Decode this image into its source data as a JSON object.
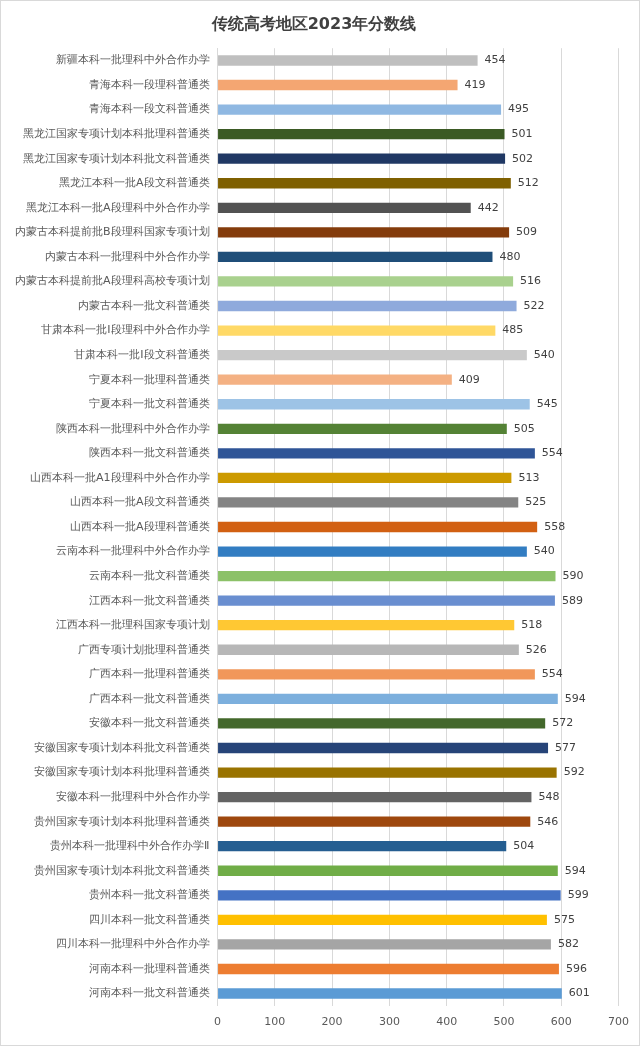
{
  "chart_data": {
    "type": "bar",
    "orientation": "horizontal",
    "title": "传统高考地区2023年分数线",
    "categories": [
      "新疆本科一批理科中外合作办学",
      "青海本科一段理科普通类",
      "青海本科一段文科普通类",
      "黑龙江国家专项计划本科批理科普通类",
      "黑龙江国家专项计划本科批文科普通类",
      "黑龙江本科一批A段文科普通类",
      "黑龙江本科一批A段理科中外合作办学",
      "内蒙古本科提前批B段理科国家专项计划",
      "内蒙古本科一批理科中外合作办学",
      "内蒙古本科提前批A段理科高校专项计划",
      "内蒙古本科一批文科普通类",
      "甘肃本科一批I段理科中外合作办学",
      "甘肃本科一批I段文科普通类",
      "宁夏本科一批理科普通类",
      "宁夏本科一批文科普通类",
      "陕西本科一批理科中外合作办学",
      "陕西本科一批文科普通类",
      "山西本科一批A1段理科中外合作办学",
      "山西本科一批A段文科普通类",
      "山西本科一批A段理科普通类",
      "云南本科一批理科中外合作办学",
      "云南本科一批文科普通类",
      "江西本科一批文科普通类",
      "江西本科一批理科国家专项计划",
      "广西专项计划批理科普通类",
      "广西本科一批理科普通类",
      "广西本科一批文科普通类",
      "安徽本科一批文科普通类",
      "安徽国家专项计划本科批文科普通类",
      "安徽国家专项计划本科批理科普通类",
      "安徽本科一批理科中外合作办学",
      "贵州国家专项计划本科批理科普通类",
      "贵州本科一批理科中外合作办学Ⅱ",
      "贵州国家专项计划本科批文科普通类",
      "贵州本科一批文科普通类",
      "四川本科一批文科普通类",
      "四川本科一批理科中外合作办学",
      "河南本科一批理科普通类",
      "河南本科一批文科普通类"
    ],
    "values": [
      454,
      419,
      495,
      501,
      502,
      512,
      442,
      509,
      480,
      516,
      522,
      485,
      540,
      409,
      545,
      505,
      554,
      513,
      525,
      558,
      540,
      590,
      589,
      518,
      526,
      554,
      594,
      572,
      577,
      592,
      548,
      546,
      504,
      594,
      599,
      575,
      582,
      596,
      601
    ],
    "colors": [
      "#bfbfbf",
      "#f4a672",
      "#8fb8e2",
      "#3b5a24",
      "#203864",
      "#7f6000",
      "#525252",
      "#843c0c",
      "#1f4e79",
      "#a9d18e",
      "#8faadc",
      "#ffd966",
      "#c9c9c9",
      "#f4b183",
      "#9dc3e6",
      "#548235",
      "#2f5597",
      "#cc9a00",
      "#848484",
      "#d26012",
      "#327dc2",
      "#8cc168",
      "#698ed0",
      "#ffc833",
      "#b7b7b7",
      "#f1975a",
      "#7cafdd",
      "#43682b",
      "#264478",
      "#997300",
      "#636363",
      "#9e480e",
      "#255e91",
      "#70ad47",
      "#4472c4",
      "#ffc000",
      "#a5a5a5",
      "#ed7d31",
      "#5b9bd5"
    ],
    "xlim": [
      0,
      700
    ],
    "xticks": [
      0,
      100,
      200,
      300,
      400,
      500,
      600,
      700
    ],
    "grid": "x",
    "data_labels": true
  }
}
